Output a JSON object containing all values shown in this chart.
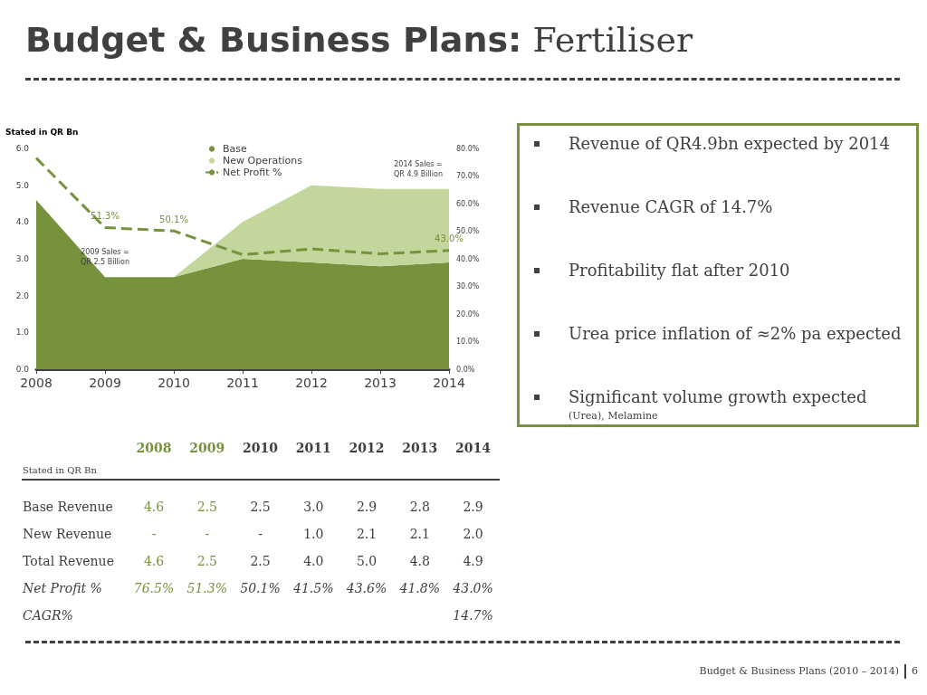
{
  "chart_data": {
    "type": "area",
    "title": "Budget & Business Plans:",
    "subtitle": "Fertiliser",
    "ylabel": "Stated in QR Bn",
    "categories": [
      "2008",
      "2009",
      "2010",
      "2011",
      "2012",
      "2013",
      "2014"
    ],
    "series": [
      {
        "name": "Base",
        "color": "#76923c",
        "values": [
          4.6,
          2.5,
          2.5,
          3.0,
          2.9,
          2.8,
          2.9
        ]
      },
      {
        "name": "New Operations",
        "color": "#c3d69b",
        "values": [
          0,
          0,
          0,
          1.0,
          2.1,
          2.1,
          2.0
        ]
      },
      {
        "name": "Net Profit %",
        "type": "line",
        "axis": "y2",
        "color": "#76923c",
        "line_style": "dashed",
        "values": [
          76.5,
          51.3,
          50.1,
          41.5,
          43.6,
          41.8,
          43.0
        ],
        "value_labels": [
          null,
          "51.3%",
          "50.1%",
          null,
          null,
          null,
          "43.0%"
        ]
      }
    ],
    "stacked": true,
    "ylim": [
      0,
      6
    ],
    "yticks": [
      {
        "value": 0,
        "label": "0.0"
      },
      {
        "value": 1,
        "label": "1.0"
      },
      {
        "value": 2,
        "label": "2.0"
      },
      {
        "value": 3,
        "label": "3.0"
      },
      {
        "value": 4,
        "label": "4.0"
      },
      {
        "value": 5,
        "label": "5.0"
      },
      {
        "value": 6,
        "label": "6.0"
      }
    ],
    "y2lim": [
      0,
      80
    ],
    "y2ticks": [
      {
        "value": 0,
        "label": "0.0%"
      },
      {
        "value": 10,
        "label": "10.0%"
      },
      {
        "value": 20,
        "label": "20.0%"
      },
      {
        "value": 30,
        "label": "30.0%"
      },
      {
        "value": 40,
        "label": "40.0%"
      },
      {
        "value": 50,
        "label": "50.0%"
      },
      {
        "value": 60,
        "label": "60.0%"
      },
      {
        "value": 70,
        "label": "70.0%"
      },
      {
        "value": 80,
        "label": "80.0%"
      }
    ],
    "grid": false,
    "legend": "top",
    "annotations": [
      {
        "text": "2009 Sales = QR 2.5 Billion",
        "x": "2009",
        "y": 2.5
      },
      {
        "text": "2014 Sales = QR 4.9 Billion",
        "x": "2014",
        "y": 4.9
      },
      "Revenue of  QR4.9bn expected by 2014",
      "Revenue CAGR of 14.7%",
      "Profitability flat after 2010",
      "Urea price inflation of ≈2% pa expected",
      "Significant volume growth expected",
      "(Urea), Melamine",
      "Budget & Business Plans (2010 – 2014)",
      "6",
      "Stated in QR Bn",
      "2008",
      "2009",
      "2010",
      "2011",
      "2012",
      "2013",
      "2014",
      "Base Revenue",
      "4.6",
      "2.5",
      "2.5",
      "3.0",
      "2.9",
      "2.8",
      "2.9",
      "New Revenue",
      "-",
      "-",
      "-",
      "1.0",
      "2.1",
      "2.1",
      "2.0",
      "Total Revenue",
      "4.6",
      "2.5",
      "2.5",
      "4.0",
      "5.0",
      "4.8",
      "4.9",
      "Net Profit %",
      "76.5%",
      "51.3%",
      "50.1%",
      "41.5%",
      "43.6%",
      "41.8%",
      "43.0%",
      "CAGR%",
      "14.7%"
    ]
  }
}
